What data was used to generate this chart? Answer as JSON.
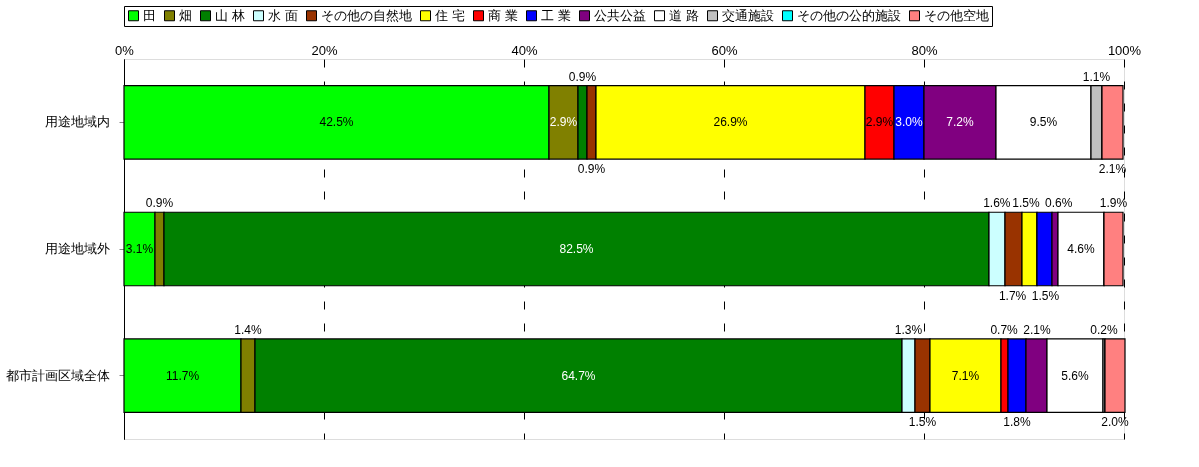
{
  "chart_data": {
    "type": "bar",
    "orientation": "horizontal",
    "stacked": true,
    "categories": [
      "用途地域内",
      "用途地域外",
      "都市計画区域全体"
    ],
    "series": [
      {
        "name": "田",
        "color": "#00ff00",
        "values": [
          42.5,
          3.1,
          11.7
        ],
        "value_labels": [
          "42.5%",
          "3.1%",
          "11.7%"
        ]
      },
      {
        "name": "畑",
        "color": "#808000",
        "values": [
          2.9,
          0.9,
          1.4
        ],
        "value_labels": [
          "2.9%",
          "0.9%",
          "1.4%"
        ]
      },
      {
        "name": "山 林",
        "color": "#008000",
        "values": [
          0.9,
          82.5,
          64.7
        ],
        "value_labels": [
          "0.9%",
          "82.5%",
          "64.7%"
        ]
      },
      {
        "name": "水 面",
        "color": "#ccffff",
        "values": [
          null,
          1.6,
          1.3
        ],
        "value_labels": [
          null,
          "1.6%",
          "1.3%"
        ]
      },
      {
        "name": "その他の自然地",
        "color": "#993300",
        "values": [
          0.9,
          1.7,
          1.5
        ],
        "value_labels": [
          "0.9%",
          "1.7%",
          "1.5%"
        ]
      },
      {
        "name": "住 宅",
        "color": "#ffff00",
        "values": [
          26.9,
          1.5,
          7.1
        ],
        "value_labels": [
          "26.9%",
          "1.5%",
          "7.1%"
        ]
      },
      {
        "name": "商 業",
        "color": "#ff0000",
        "values": [
          2.9,
          0,
          0.7
        ],
        "value_labels": [
          "2.9%",
          null,
          "0.7%"
        ]
      },
      {
        "name": "工 業",
        "color": "#0000ff",
        "values": [
          3.0,
          1.5,
          1.8
        ],
        "value_labels": [
          "3.0%",
          "1.5%",
          "1.8%"
        ]
      },
      {
        "name": "公共公益",
        "color": "#800080",
        "values": [
          7.2,
          0.6,
          2.1
        ],
        "value_labels": [
          "7.2%",
          "0.6%",
          "2.1%"
        ]
      },
      {
        "name": "道 路",
        "color": "#ffffff",
        "values": [
          9.5,
          4.6,
          5.6
        ],
        "value_labels": [
          "9.5%",
          "4.6%",
          "5.6%"
        ]
      },
      {
        "name": "交通施設",
        "color": "#c0c0c0",
        "values": [
          1.1,
          null,
          0.2
        ],
        "value_labels": [
          "1.1%",
          null,
          "0.2%"
        ]
      },
      {
        "name": "その他の公的施設",
        "color": "#00ffff",
        "values": [
          0,
          0,
          0
        ],
        "value_labels": [
          null,
          null,
          null
        ]
      },
      {
        "name": "その他空地",
        "color": "#ff8080",
        "values": [
          2.1,
          1.9,
          2.0
        ],
        "value_labels": [
          "2.1%",
          "1.9%",
          "2.0%"
        ]
      }
    ],
    "xlim": [
      0,
      100
    ],
    "xticks": [
      {
        "value": 0,
        "label": "0%"
      },
      {
        "value": 20,
        "label": "20%"
      },
      {
        "value": 40,
        "label": "40%"
      },
      {
        "value": 60,
        "label": "60%"
      },
      {
        "value": 80,
        "label": "80%"
      },
      {
        "value": 100,
        "label": "100%"
      }
    ],
    "grid": "x",
    "legend": "top"
  }
}
